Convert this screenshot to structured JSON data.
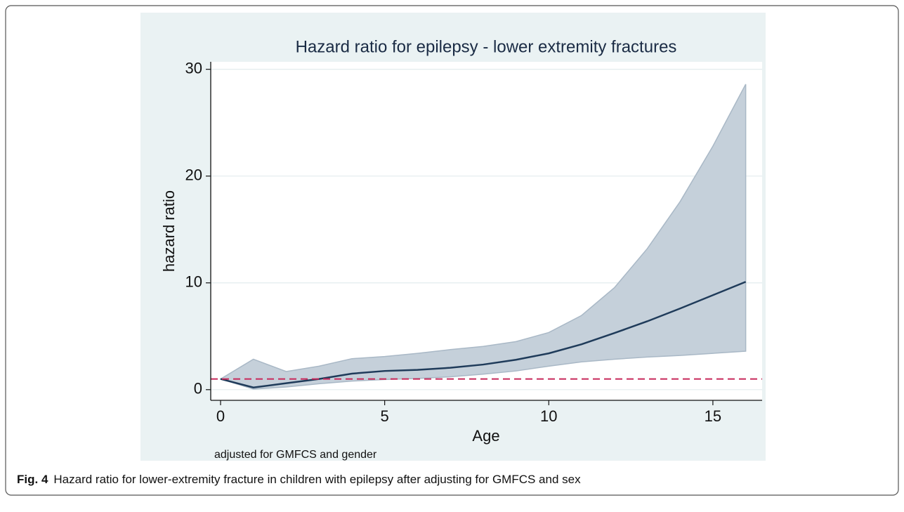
{
  "chart_data": {
    "type": "line",
    "title": "Hazard ratio for epilepsy - lower extremity fractures",
    "xlabel": "Age",
    "ylabel": "hazard ratio",
    "note": "adjusted for GMFCS and gender",
    "x": [
      0,
      1,
      2,
      3,
      4,
      5,
      6,
      7,
      8,
      9,
      10,
      11,
      12,
      13,
      14,
      15,
      16
    ],
    "series": [
      {
        "color": "#1f3b5a",
        "values": [
          1.0,
          0.2,
          0.6,
          1.0,
          1.5,
          1.75,
          1.85,
          2.05,
          2.35,
          2.8,
          3.4,
          4.25,
          5.3,
          6.4,
          7.6,
          8.85,
          10.1
        ],
        "ci_lower": [
          1.0,
          0.05,
          0.25,
          0.55,
          0.8,
          0.95,
          1.05,
          1.2,
          1.45,
          1.75,
          2.2,
          2.6,
          2.85,
          3.05,
          3.2,
          3.4,
          3.6
        ],
        "ci_upper": [
          1.0,
          2.85,
          1.7,
          2.2,
          2.9,
          3.1,
          3.4,
          3.75,
          4.05,
          4.5,
          5.35,
          6.95,
          9.55,
          13.2,
          17.6,
          22.8,
          28.6
        ],
        "band_color": "#c5d0da"
      }
    ],
    "reference_line": {
      "value": 1,
      "color": "#c8285a"
    },
    "xlim": [
      -0.3,
      16.5
    ],
    "xticks": [
      0,
      5,
      10,
      15
    ],
    "ylim": [
      -1,
      30.7
    ],
    "yticks": [
      0,
      10,
      20,
      30
    ],
    "grid": true
  },
  "caption": {
    "label": "Fig. 4",
    "text": "Hazard ratio for lower-extremity fracture in children with epilepsy after adjusting for GMFCS and sex"
  }
}
